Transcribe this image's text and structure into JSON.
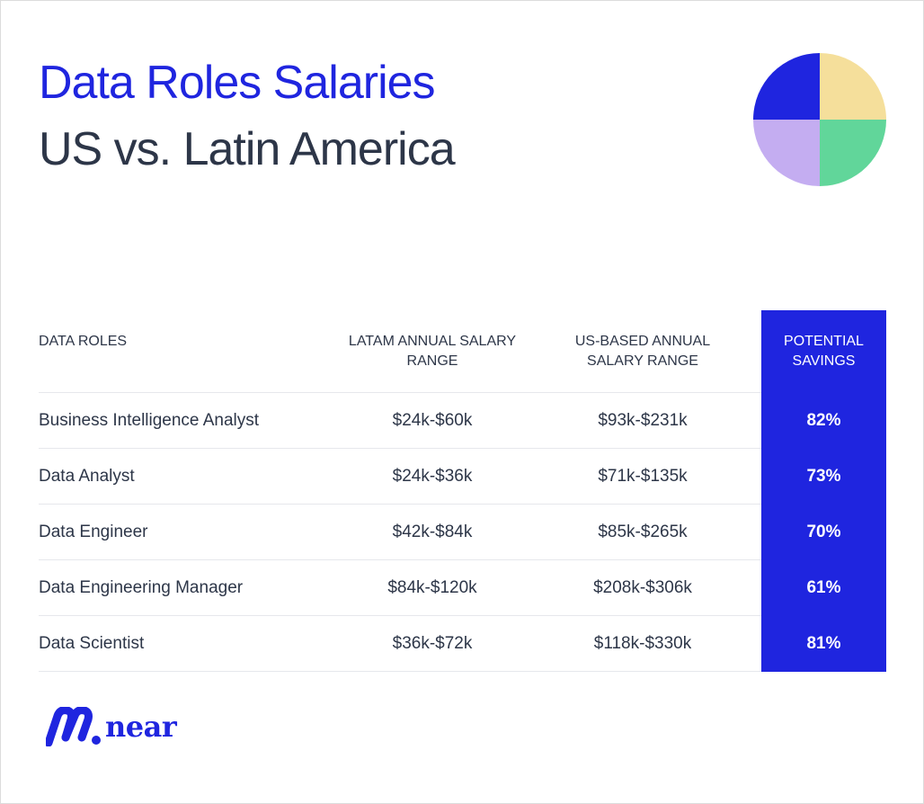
{
  "title": {
    "line1": "Data Roles Salaries",
    "line2": "US vs. Latin America"
  },
  "colors": {
    "brand_blue": "#1f25df",
    "text_dark": "#2d3648",
    "pie_yellow": "#f5df9b",
    "pie_green": "#61d69a",
    "pie_lavender": "#c4adf1"
  },
  "table": {
    "headers": {
      "role": "DATA ROLES",
      "latam_line1": "LATAM ANNUAL SALARY",
      "latam_line2": "RANGE",
      "us_line1": "US-BASED ANNUAL",
      "us_line2": "SALARY RANGE",
      "savings_line1": "POTENTIAL",
      "savings_line2": "SAVINGS"
    },
    "rows": [
      {
        "role": "Business Intelligence Analyst",
        "latam": "$24k-$60k",
        "us": "$93k-$231k",
        "savings": "82%"
      },
      {
        "role": "Data Analyst",
        "latam": "$24k-$36k",
        "us": "$71k-$135k",
        "savings": "73%"
      },
      {
        "role": "Data Engineer",
        "latam": "$42k-$84k",
        "us": "$85k-$265k",
        "savings": "70%"
      },
      {
        "role": "Data Engineering Manager",
        "latam": "$84k-$120k",
        "us": "$208k-$306k",
        "savings": "61%"
      },
      {
        "role": "Data Scientist",
        "latam": "$36k-$72k",
        "us": "$118k-$330k",
        "savings": "81%"
      }
    ]
  },
  "brand": {
    "name": "near",
    "icon": "near-logo-icon"
  }
}
